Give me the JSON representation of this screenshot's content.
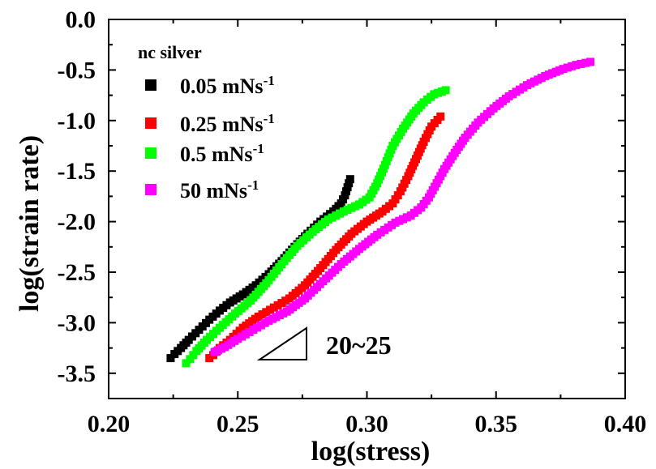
{
  "chart_data": {
    "type": "scatter",
    "title": "",
    "xlabel": "log(stress)",
    "ylabel": "log(strain rate)",
    "xlim": [
      0.2,
      0.4
    ],
    "ylim": [
      -3.75,
      0.0
    ],
    "xticks": [
      "0.20",
      "0.25",
      "0.30",
      "0.35",
      "0.40"
    ],
    "yticks": [
      "0.0",
      "-0.5",
      "-1.0",
      "-1.5",
      "-2.0",
      "-2.5",
      "-3.0",
      "-3.5"
    ],
    "grid": false,
    "legend_title": "nc silver",
    "legend_position": "top-left",
    "annotation": "20~25",
    "series": [
      {
        "name": "0.05 mNs-1",
        "label_main": "0.05 mNs",
        "label_sup": "-1",
        "color": "#000000",
        "x": [
          0.224,
          0.2255,
          0.228,
          0.231,
          0.235,
          0.239,
          0.243,
          0.247,
          0.252,
          0.257,
          0.262,
          0.267,
          0.272,
          0.277,
          0.282,
          0.287,
          0.29,
          0.2915,
          0.2925,
          0.2935
        ],
        "y": [
          -3.35,
          -3.31,
          -3.25,
          -3.17,
          -3.07,
          -2.97,
          -2.88,
          -2.8,
          -2.72,
          -2.63,
          -2.52,
          -2.39,
          -2.25,
          -2.12,
          -2.0,
          -1.9,
          -1.82,
          -1.74,
          -1.66,
          -1.58
        ]
      },
      {
        "name": "0.25 mNs-1",
        "label_main": "0.25 mNs",
        "label_sup": "-1",
        "color": "#ff0000",
        "x": [
          0.239,
          0.2405,
          0.243,
          0.247,
          0.252,
          0.258,
          0.264,
          0.27,
          0.276,
          0.282,
          0.288,
          0.294,
          0.3,
          0.306,
          0.31,
          0.313,
          0.316,
          0.319,
          0.322,
          0.325,
          0.3285
        ],
        "y": [
          -3.35,
          -3.32,
          -3.25,
          -3.17,
          -3.05,
          -2.94,
          -2.85,
          -2.76,
          -2.63,
          -2.46,
          -2.28,
          -2.12,
          -2.0,
          -1.9,
          -1.82,
          -1.7,
          -1.55,
          -1.38,
          -1.21,
          -1.06,
          -0.96
        ]
      },
      {
        "name": "0.5 mNs-1",
        "label_main": "0.5 mNs",
        "label_sup": "-1",
        "color": "#00ff00",
        "x": [
          0.23,
          0.2315,
          0.234,
          0.238,
          0.243,
          0.249,
          0.255,
          0.261,
          0.267,
          0.273,
          0.279,
          0.285,
          0.291,
          0.297,
          0.301,
          0.304,
          0.307,
          0.31,
          0.314,
          0.318,
          0.322,
          0.326,
          0.3305
        ],
        "y": [
          -3.4,
          -3.36,
          -3.28,
          -3.17,
          -3.05,
          -2.91,
          -2.78,
          -2.61,
          -2.42,
          -2.24,
          -2.1,
          -1.98,
          -1.9,
          -1.83,
          -1.76,
          -1.62,
          -1.44,
          -1.25,
          -1.08,
          -0.93,
          -0.82,
          -0.74,
          -0.7
        ]
      },
      {
        "name": "50 mNs-1",
        "label_main": "50 mNs",
        "label_sup": "-1",
        "color": "#ff00ff",
        "x": [
          0.241,
          0.245,
          0.25,
          0.256,
          0.262,
          0.269,
          0.276,
          0.283,
          0.29,
          0.297,
          0.304,
          0.311,
          0.317,
          0.321,
          0.324,
          0.327,
          0.33,
          0.334,
          0.338,
          0.343,
          0.349,
          0.355,
          0.362,
          0.369,
          0.376,
          0.381,
          0.3865
        ],
        "y": [
          -3.29,
          -3.24,
          -3.16,
          -3.07,
          -2.98,
          -2.89,
          -2.76,
          -2.59,
          -2.42,
          -2.27,
          -2.13,
          -2.01,
          -1.94,
          -1.86,
          -1.76,
          -1.62,
          -1.48,
          -1.32,
          -1.17,
          -1.02,
          -0.88,
          -0.76,
          -0.65,
          -0.56,
          -0.49,
          -0.45,
          -0.42
        ]
      }
    ]
  }
}
